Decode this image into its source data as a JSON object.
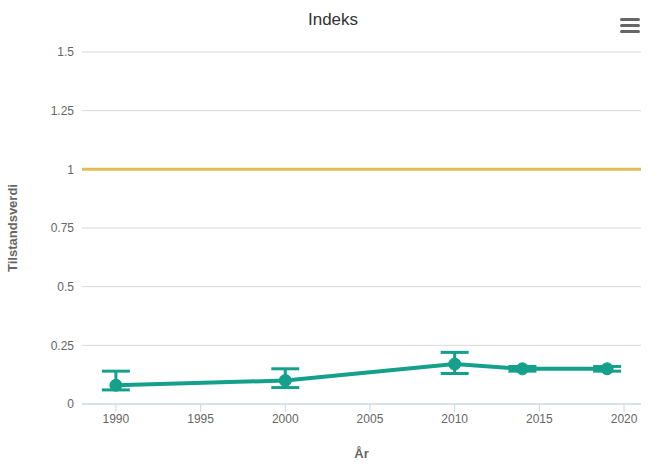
{
  "chart_data": {
    "type": "line",
    "title": "Indeks",
    "x_label": "År",
    "y_label": "Tilstandsverdi",
    "x": [
      1990,
      2000,
      2010,
      2014,
      2019
    ],
    "values": [
      0.08,
      0.1,
      0.17,
      0.15,
      0.15
    ],
    "error_low": [
      0.06,
      0.07,
      0.13,
      0.14,
      0.14
    ],
    "error_high": [
      0.14,
      0.15,
      0.22,
      0.16,
      0.16
    ],
    "color": "#14a08a",
    "marker": "circle",
    "line_style": "solid",
    "reference_lines": [
      {
        "value": 1,
        "color": "#e0bf5a"
      }
    ],
    "xlim": [
      1988,
      2021
    ],
    "xticks": [
      1990,
      1995,
      2000,
      2005,
      2010,
      2015,
      2020
    ],
    "ylim": [
      0,
      1.5
    ],
    "yticks": [
      0,
      0.25,
      0.5,
      0.75,
      1,
      1.25,
      1.5
    ],
    "grid": true
  }
}
